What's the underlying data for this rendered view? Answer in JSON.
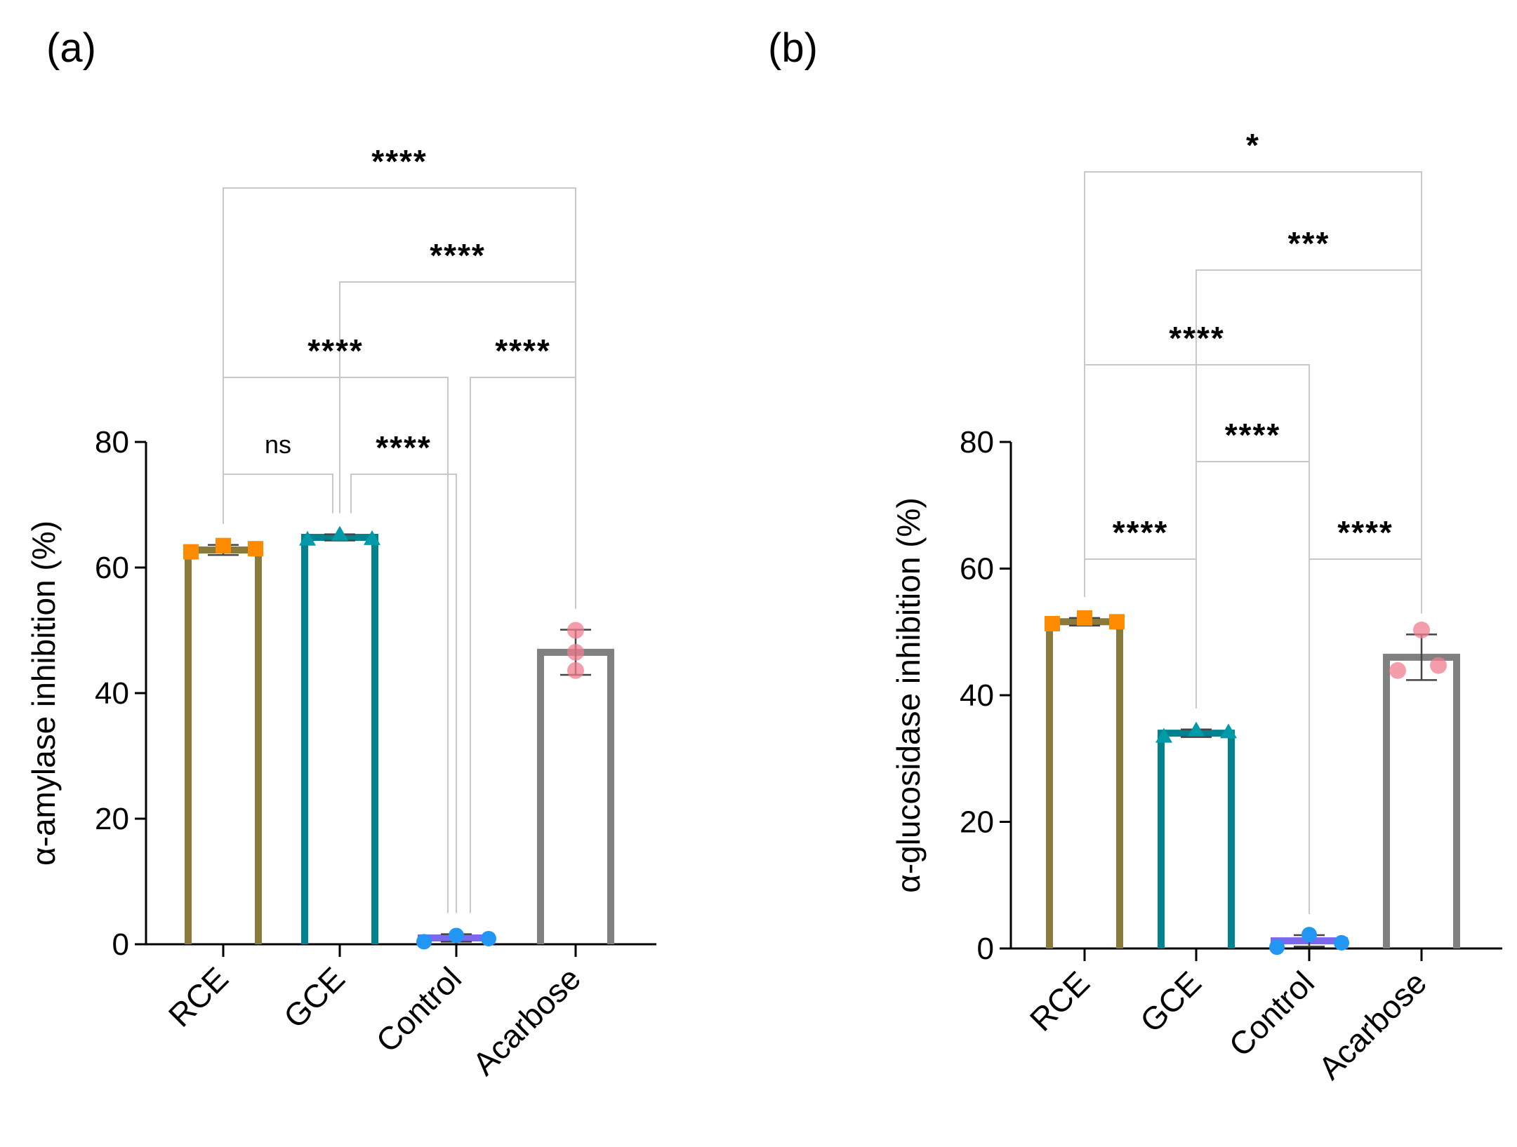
{
  "figure": {
    "colors": {
      "RCE": "#8a7a3c",
      "GCE": "#00838f",
      "Control": "#7b68ee",
      "Acarbose": "#808080",
      "RCE_points": "#ff8c00",
      "GCE_points": "#009aa8",
      "Control_points": "#2196f3",
      "Acarbose_points": "#f07d90",
      "bracket": "#c8c8c8",
      "axis": "#000000"
    }
  },
  "chart_data": [
    {
      "id": "a",
      "panel_label": "(a)",
      "type": "bar",
      "categories": [
        "RCE",
        "GCE",
        "Control",
        "Acarbose"
      ],
      "values": [
        62.8,
        64.8,
        1.0,
        46.5
      ],
      "error": [
        0.8,
        0.5,
        0.6,
        3.6
      ],
      "points": [
        [
          62.5,
          63.5,
          63.0
        ],
        [
          64.5,
          65.3,
          64.6
        ],
        [
          0.4,
          1.4,
          0.9
        ],
        [
          50.0,
          46.5,
          43.6
        ]
      ],
      "ylabel": "α-amylase inhibition (%)",
      "xlabel": "",
      "ylim": [
        0,
        80
      ],
      "yticks": [
        0,
        20,
        40,
        60,
        80
      ],
      "ytick_labels": [
        "0",
        "20",
        "40",
        "60",
        "80"
      ],
      "comparisons": [
        {
          "from": 0,
          "to": 3,
          "label": "****"
        },
        {
          "from": 1,
          "to": 3,
          "label": "****"
        },
        {
          "from": 0,
          "to": 2,
          "label": "****"
        },
        {
          "from": 2,
          "to": 3,
          "label": "****"
        },
        {
          "from": 0,
          "to": 1,
          "label": "ns"
        },
        {
          "from": 1,
          "to": 2,
          "label": "****"
        }
      ]
    },
    {
      "id": "b",
      "panel_label": "(b)",
      "type": "bar",
      "categories": [
        "RCE",
        "GCE",
        "Control",
        "Acarbose"
      ],
      "values": [
        51.6,
        34.0,
        1.2,
        46.0
      ],
      "error": [
        0.6,
        0.6,
        0.9,
        3.6
      ],
      "points": [
        [
          51.3,
          52.2,
          51.6
        ],
        [
          33.5,
          34.5,
          34.2
        ],
        [
          0.2,
          2.2,
          0.9
        ],
        [
          50.3,
          43.9,
          44.7
        ]
      ],
      "ylabel": "α-glucosidase inhibition (%)",
      "xlabel": "",
      "ylim": [
        0,
        80
      ],
      "yticks": [
        0,
        20,
        40,
        60,
        80
      ],
      "ytick_labels": [
        "0",
        "20",
        "40",
        "60",
        "80"
      ],
      "comparisons": [
        {
          "from": 0,
          "to": 3,
          "label": "*"
        },
        {
          "from": 1,
          "to": 3,
          "label": "***"
        },
        {
          "from": 0,
          "to": 2,
          "label": "****"
        },
        {
          "from": 1,
          "to": 2,
          "label": "****"
        },
        {
          "from": 0,
          "to": 1,
          "label": "****"
        },
        {
          "from": 2,
          "to": 3,
          "label": "****"
        }
      ]
    }
  ]
}
